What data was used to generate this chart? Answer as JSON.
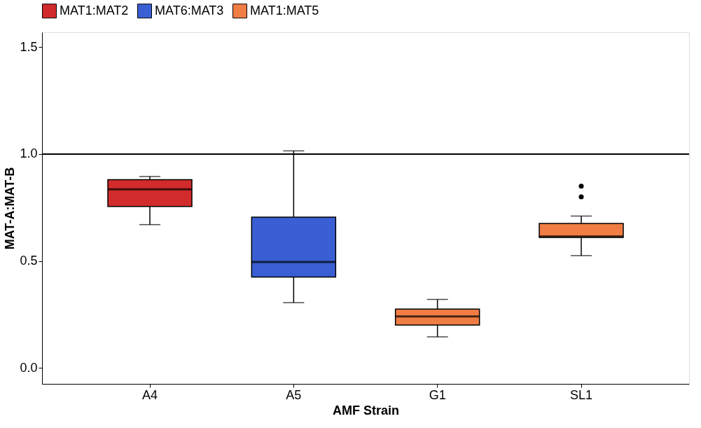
{
  "chart_data": {
    "type": "box",
    "xlabel": "AMF Strain",
    "ylabel": "MAT-A:MAT-B",
    "categories": [
      "A4",
      "A5",
      "G1",
      "SL1"
    ],
    "ylim": [
      -0.075,
      1.57
    ],
    "yticks": [
      {
        "value": 0,
        "label": "0.0"
      },
      {
        "value": 0.5,
        "label": "0.5"
      },
      {
        "value": 1,
        "label": "1.0"
      },
      {
        "value": 1.5,
        "label": "1.5"
      }
    ],
    "grid": false,
    "legend": "top",
    "ref_lines": [
      {
        "axis": "y",
        "value": 1,
        "color": "#000000"
      }
    ],
    "series": [
      {
        "name": "MAT1:MAT2",
        "color": "#d22b2b",
        "boxes": [
          {
            "low": 0.67,
            "q1": 0.755,
            "median": 0.835,
            "q3": 0.88,
            "high": 0.895
          },
          null,
          null,
          null
        ]
      },
      {
        "name": "MAT6:MAT3",
        "color": "#3a5fd4",
        "boxes": [
          null,
          {
            "low": 0.305,
            "q1": 0.425,
            "median": 0.495,
            "q3": 0.705,
            "high": 1.015
          },
          null,
          null
        ]
      },
      {
        "name": "MAT1:MAT5",
        "color": "#f07d44",
        "boxes": [
          null,
          null,
          {
            "low": 0.145,
            "q1": 0.2,
            "median": 0.24,
            "q3": 0.275,
            "high": 0.32
          },
          {
            "low": 0.525,
            "q1": 0.61,
            "median": 0.615,
            "q3": 0.675,
            "high": 0.71,
            "outliers": [
              0.8,
              0.85
            ]
          }
        ]
      }
    ]
  }
}
